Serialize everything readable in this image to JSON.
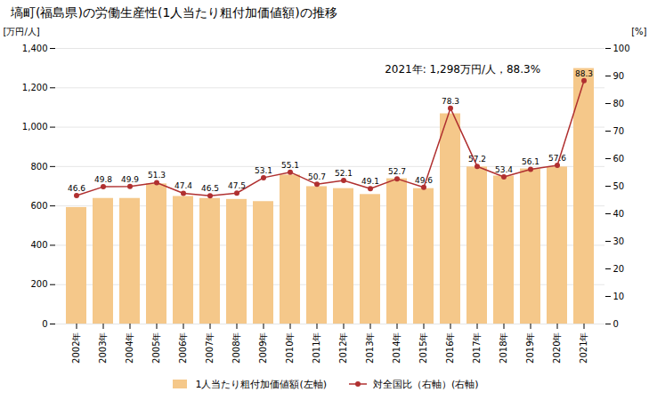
{
  "chart_data": {
    "type": "bar",
    "title": "塙町(福島県)の労働生産性(1人当たり粗付加価値額)の推移",
    "annotation": "2021年: 1,298万円/人，88.3%",
    "ylabel": "[万円/人]",
    "y2label": "[%]",
    "categories": [
      "2002年",
      "2003年",
      "2004年",
      "2005年",
      "2006年",
      "2007年",
      "2008年",
      "2009年",
      "2010年",
      "2011年",
      "2012年",
      "2013年",
      "2014年",
      "2015年",
      "2016年",
      "2017年",
      "2018年",
      "2019年",
      "2020年",
      "2021年"
    ],
    "series": [
      {
        "name": "1人当たり粗付加価値額(左軸)",
        "type": "bar",
        "color": "#F5C88A",
        "values": [
          592,
          638,
          638,
          712,
          648,
          638,
          633,
          622,
          757,
          698,
          688,
          658,
          738,
          688,
          1068,
          798,
          752,
          788,
          798,
          1298
        ]
      },
      {
        "name": "対全国比（右軸）(右軸)",
        "type": "line",
        "axis": "y2",
        "color": "#B03030",
        "marker": "circle",
        "data_labels": true,
        "values": [
          46.6,
          49.8,
          49.9,
          51.3,
          47.4,
          46.5,
          47.5,
          53.1,
          55.1,
          50.7,
          52.1,
          49.1,
          52.7,
          49.6,
          78.3,
          57.2,
          53.4,
          56.1,
          57.6,
          88.3
        ]
      }
    ],
    "ylim": [
      0,
      1400
    ],
    "yticks": [
      0,
      200,
      400,
      600,
      800,
      {
        "value": 1000,
        "label": "1,000"
      },
      {
        "value": 1200,
        "label": "1,200"
      },
      {
        "value": 1400,
        "label": "1,400"
      }
    ],
    "y2lim": [
      0,
      100
    ],
    "y2ticks": [
      0,
      10,
      20,
      30,
      40,
      50,
      60,
      70,
      80,
      90,
      100
    ],
    "grid": true,
    "legend": "bottom"
  }
}
